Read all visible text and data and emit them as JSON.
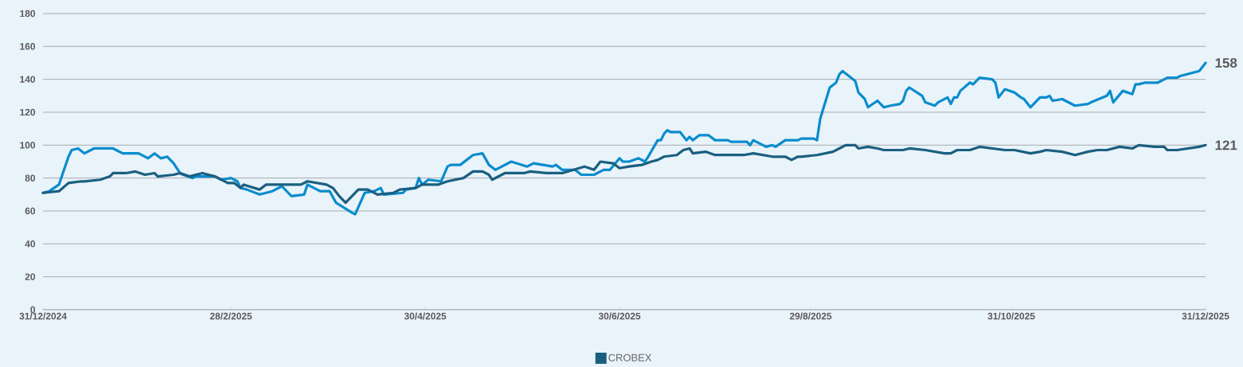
{
  "chart_data": {
    "type": "line",
    "xlim": [
      "2024-12-31",
      "2025-12-31"
    ],
    "ylim": [
      0,
      180
    ],
    "xticks": [
      {
        "value": "2024-12-31",
        "label": "31/12/2024"
      },
      {
        "value": "2025-02-28",
        "label": "28/2/2025"
      },
      {
        "value": "2025-04-30",
        "label": "30/4/2025"
      },
      {
        "value": "2025-06-30",
        "label": "30/6/2025"
      },
      {
        "value": "2025-08-29",
        "label": "29/8/2025"
      },
      {
        "value": "2025-10-31",
        "label": "31/10/2025"
      },
      {
        "value": "2025-12-31",
        "label": "31/12/2025"
      }
    ],
    "yticks": [
      0,
      20,
      40,
      60,
      80,
      100,
      120,
      140,
      160,
      180
    ],
    "grid": "y",
    "legend": "bottom",
    "marker": "none",
    "line_style": "solid",
    "series": [
      {
        "color": "#0a8ccd",
        "x": [
          "2024-12-31",
          "2025-01-02",
          "2025-01-05",
          "2025-01-08",
          "2025-01-09",
          "2025-01-11",
          "2025-01-13",
          "2025-01-16",
          "2025-01-22",
          "2025-01-25",
          "2025-01-30",
          "2025-02-02",
          "2025-02-04",
          "2025-02-06",
          "2025-02-08",
          "2025-02-10",
          "2025-02-12",
          "2025-02-13",
          "2025-02-16",
          "2025-02-17",
          "2025-02-20",
          "2025-02-23",
          "2025-02-25",
          "2025-02-28",
          "2025-03-02",
          "2025-03-03",
          "2025-03-05",
          "2025-03-09",
          "2025-03-13",
          "2025-03-16",
          "2025-03-18",
          "2025-03-19",
          "2025-03-23",
          "2025-03-24",
          "2025-03-28",
          "2025-03-31",
          "2025-04-02",
          "2025-04-07",
          "2025-04-08",
          "2025-04-11",
          "2025-04-14",
          "2025-04-16",
          "2025-04-17",
          "2025-04-23",
          "2025-04-24",
          "2025-04-27",
          "2025-04-28",
          "2025-04-29",
          "2025-05-01",
          "2025-05-05",
          "2025-05-07",
          "2025-05-08",
          "2025-05-11",
          "2025-05-15",
          "2025-05-18",
          "2025-05-20",
          "2025-05-22",
          "2025-05-27",
          "2025-06-01",
          "2025-06-03",
          "2025-06-09",
          "2025-06-10",
          "2025-06-12",
          "2025-06-16",
          "2025-06-18",
          "2025-06-22",
          "2025-06-25",
          "2025-06-27",
          "2025-06-30",
          "2025-07-01",
          "2025-07-03",
          "2025-07-06",
          "2025-07-08",
          "2025-07-09",
          "2025-07-12",
          "2025-07-13",
          "2025-07-14",
          "2025-07-15",
          "2025-07-16",
          "2025-07-19",
          "2025-07-21",
          "2025-07-22",
          "2025-07-23",
          "2025-07-25",
          "2025-07-28",
          "2025-07-30",
          "2025-08-03",
          "2025-08-04",
          "2025-08-09",
          "2025-08-10",
          "2025-08-11",
          "2025-08-15",
          "2025-08-17",
          "2025-08-18",
          "2025-08-21",
          "2025-08-25",
          "2025-08-26",
          "2025-08-29",
          "2025-08-30",
          "2025-08-31",
          "2025-09-01",
          "2025-09-04",
          "2025-09-06",
          "2025-09-07",
          "2025-09-08",
          "2025-09-12",
          "2025-09-13",
          "2025-09-15",
          "2025-09-16",
          "2025-09-19",
          "2025-09-21",
          "2025-09-23",
          "2025-09-26",
          "2025-09-27",
          "2025-09-28",
          "2025-09-29",
          "2025-10-03",
          "2025-10-04",
          "2025-10-07",
          "2025-10-08",
          "2025-10-11",
          "2025-10-12",
          "2025-10-13",
          "2025-10-14",
          "2025-10-15",
          "2025-10-18",
          "2025-10-19",
          "2025-10-21",
          "2025-10-25",
          "2025-10-26",
          "2025-10-27",
          "2025-10-29",
          "2025-11-01",
          "2025-11-03",
          "2025-11-04",
          "2025-11-06",
          "2025-11-09",
          "2025-11-11",
          "2025-11-12",
          "2025-11-13",
          "2025-11-16",
          "2025-11-18",
          "2025-11-19",
          "2025-11-20",
          "2025-11-24",
          "2025-11-25",
          "2025-11-30",
          "2025-12-01",
          "2025-12-02",
          "2025-12-05",
          "2025-12-08",
          "2025-12-09",
          "2025-12-10",
          "2025-12-12",
          "2025-12-16",
          "2025-12-17",
          "2025-12-19",
          "2025-12-22",
          "2025-12-23",
          "2025-12-29",
          "2025-12-31"
        ],
        "values": [
          71,
          72,
          76,
          93,
          97,
          98,
          95,
          98,
          98,
          95,
          95,
          92,
          95,
          92,
          93,
          89,
          83,
          82,
          80,
          81,
          81,
          81,
          79,
          80,
          78,
          74,
          73,
          70,
          72,
          75,
          71,
          69,
          70,
          76,
          72,
          72,
          65,
          59,
          58,
          71,
          72,
          74,
          70,
          71,
          73,
          74,
          80,
          76,
          79,
          78,
          87,
          88,
          88,
          94,
          95,
          88,
          85,
          90,
          87,
          89,
          87,
          88,
          85,
          85,
          82,
          82,
          85,
          85,
          92,
          90,
          90,
          92,
          90,
          93,
          103,
          103,
          107,
          109,
          108,
          108,
          103,
          105,
          103,
          106,
          106,
          103,
          103,
          102,
          102,
          100,
          103,
          99,
          100,
          99,
          103,
          103,
          104,
          104,
          104,
          103,
          116,
          135,
          138,
          143,
          145,
          139,
          132,
          128,
          123,
          127,
          123,
          124,
          125,
          127,
          133,
          135,
          130,
          126,
          124,
          126,
          129,
          125,
          129,
          129,
          133,
          138,
          137,
          141,
          140,
          138,
          129,
          134,
          132,
          129,
          128,
          123,
          129,
          129,
          130,
          127,
          128,
          126,
          125,
          124,
          125,
          126,
          130,
          133,
          126,
          133,
          131,
          137,
          137,
          138,
          138,
          139,
          141,
          141,
          142,
          145,
          150
        ]
      },
      {
        "name": "CROBEX",
        "color": "#1a5f80",
        "x": [
          "2024-12-31",
          "2025-01-05",
          "2025-01-08",
          "2025-01-12",
          "2025-01-13",
          "2025-01-18",
          "2025-01-21",
          "2025-01-22",
          "2025-01-26",
          "2025-01-29",
          "2025-02-01",
          "2025-02-04",
          "2025-02-05",
          "2025-02-10",
          "2025-02-12",
          "2025-02-15",
          "2025-02-19",
          "2025-02-23",
          "2025-02-25",
          "2025-02-27",
          "2025-03-01",
          "2025-03-03",
          "2025-03-04",
          "2025-03-09",
          "2025-03-11",
          "2025-03-15",
          "2025-03-17",
          "2025-03-22",
          "2025-03-24",
          "2025-03-27",
          "2025-03-30",
          "2025-04-01",
          "2025-04-03",
          "2025-04-05",
          "2025-04-07",
          "2025-04-09",
          "2025-04-12",
          "2025-04-15",
          "2025-04-20",
          "2025-04-22",
          "2025-04-27",
          "2025-04-29",
          "2025-05-04",
          "2025-05-07",
          "2025-05-12",
          "2025-05-15",
          "2025-05-18",
          "2025-05-20",
          "2025-05-21",
          "2025-05-25",
          "2025-05-31",
          "2025-06-02",
          "2025-06-07",
          "2025-06-12",
          "2025-06-19",
          "2025-06-22",
          "2025-06-24",
          "2025-06-28",
          "2025-06-30",
          "2025-07-03",
          "2025-07-07",
          "2025-07-10",
          "2025-07-12",
          "2025-07-14",
          "2025-07-18",
          "2025-07-20",
          "2025-07-22",
          "2025-07-23",
          "2025-07-27",
          "2025-07-30",
          "2025-08-08",
          "2025-08-11",
          "2025-08-17",
          "2025-08-21",
          "2025-08-23",
          "2025-08-25",
          "2025-08-26",
          "2025-08-31",
          "2025-09-05",
          "2025-09-07",
          "2025-09-09",
          "2025-09-12",
          "2025-09-13",
          "2025-09-16",
          "2025-09-19",
          "2025-09-21",
          "2025-09-27",
          "2025-09-29",
          "2025-10-04",
          "2025-10-07",
          "2025-10-10",
          "2025-10-12",
          "2025-10-14",
          "2025-10-18",
          "2025-10-21",
          "2025-10-25",
          "2025-10-29",
          "2025-11-01",
          "2025-11-06",
          "2025-11-09",
          "2025-11-11",
          "2025-11-16",
          "2025-11-20",
          "2025-11-24",
          "2025-11-27",
          "2025-11-30",
          "2025-12-04",
          "2025-12-08",
          "2025-12-10",
          "2025-12-15",
          "2025-12-18",
          "2025-12-19",
          "2025-12-22",
          "2025-12-29",
          "2025-12-31"
        ],
        "values": [
          71,
          72,
          77,
          78,
          78,
          79,
          81,
          83,
          83,
          84,
          82,
          83,
          81,
          82,
          83,
          81,
          83,
          81,
          79,
          77,
          77,
          74,
          76,
          73,
          76,
          76,
          76,
          76,
          78,
          77,
          76,
          74,
          69,
          65,
          69,
          73,
          73,
          70,
          71,
          73,
          74,
          76,
          76,
          78,
          80,
          84,
          84,
          82,
          79,
          83,
          83,
          84,
          83,
          83,
          87,
          85,
          90,
          89,
          86,
          87,
          88,
          90,
          91,
          93,
          94,
          97,
          98,
          95,
          96,
          94,
          94,
          95,
          93,
          93,
          91,
          93,
          93,
          94,
          96,
          98,
          100,
          100,
          98,
          99,
          98,
          97,
          97,
          98,
          97,
          96,
          95,
          95,
          97,
          97,
          99,
          98,
          97,
          97,
          95,
          96,
          97,
          96,
          94,
          96,
          97,
          97,
          99,
          98,
          100,
          99,
          99,
          97,
          97,
          99,
          100
        ]
      }
    ],
    "annotations": [
      {
        "text": "158",
        "x": "2025-12-31",
        "y": 150
      },
      {
        "text": "121",
        "x": "2025-12-31",
        "y": 100
      }
    ]
  }
}
